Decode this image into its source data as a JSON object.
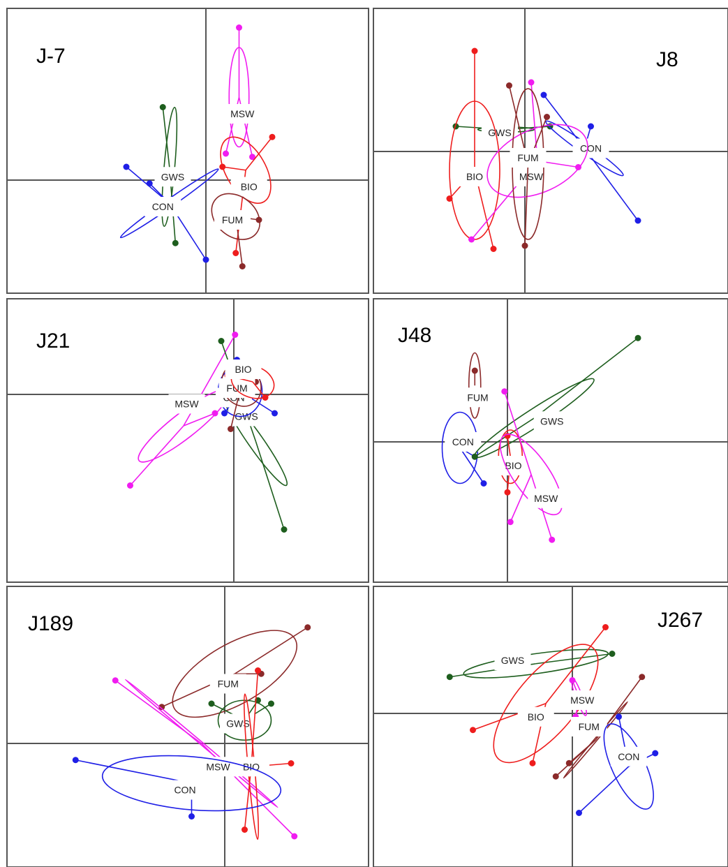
{
  "chart_data": {
    "type": "scatter",
    "description_free": true,
    "grid": false,
    "colors": {
      "CON": "#1f1fe6",
      "GWS": "#1e5e1e",
      "MSW": "#f01cf0",
      "BIO": "#ee1d1d",
      "FUM": "#8b2a2a",
      "axis": "#555555",
      "frame": "#555555"
    },
    "panels": [
      {
        "title": "J-7",
        "origin": [
          0,
          0
        ],
        "groups": [
          {
            "name": "GWS",
            "label_at": [
              -0.5,
              0.05
            ],
            "ellipse": {
              "cx": -0.55,
              "cy": 0.2,
              "rx": 0.08,
              "ry": 0.9,
              "angle": -5
            },
            "spokes": [
              [
                -0.65,
                1.1
              ],
              [
                -0.46,
                -0.95
              ]
            ]
          },
          {
            "name": "CON",
            "label_at": [
              -0.65,
              -0.4
            ],
            "ellipse": {
              "cx": -0.55,
              "cy": -0.35,
              "rx": 0.9,
              "ry": 0.06,
              "angle": 35
            },
            "spokes": [
              [
                -1.2,
                0.2
              ],
              [
                -0.85,
                -0.05
              ],
              [
                0.0,
                -1.2
              ]
            ]
          },
          {
            "name": "MSW",
            "label_at": [
              0.55,
              1.0
            ],
            "ellipse": {
              "cx": 0.5,
              "cy": 1.25,
              "rx": 0.15,
              "ry": 0.75,
              "angle": 0
            },
            "spokes": [
              [
                0.5,
                2.3
              ],
              [
                0.3,
                0.4
              ],
              [
                0.7,
                0.35
              ]
            ]
          },
          {
            "name": "BIO",
            "label_at": [
              0.65,
              -0.1
            ],
            "ellipse": {
              "cx": 0.6,
              "cy": 0.15,
              "rx": 0.3,
              "ry": 0.55,
              "angle": 30
            },
            "spokes": [
              [
                1.0,
                0.65
              ],
              [
                0.25,
                0.2
              ],
              [
                0.45,
                -1.1
              ]
            ]
          },
          {
            "name": "FUM",
            "label_at": [
              0.4,
              -0.6
            ],
            "ellipse": {
              "cx": 0.45,
              "cy": -0.55,
              "rx": 0.4,
              "ry": 0.3,
              "angle": -40
            },
            "spokes": [
              [
                0.8,
                -0.6
              ],
              [
                0.55,
                -1.3
              ]
            ]
          }
        ]
      },
      {
        "title": "J8",
        "origin": [
          0,
          0
        ],
        "groups": [
          {
            "name": "GWS",
            "label_at": [
              -0.4,
              0.3
            ],
            "ellipse": {
              "cx": -0.3,
              "cy": 0.35,
              "rx": 0.45,
              "ry": 0.04,
              "angle": 0
            },
            "spokes": [
              [
                -1.1,
                0.4
              ],
              [
                0.4,
                0.4
              ]
            ]
          },
          {
            "name": "CON",
            "label_at": [
              1.05,
              0.05
            ],
            "ellipse": {
              "cx": 0.95,
              "cy": 0.05,
              "rx": 0.75,
              "ry": 0.08,
              "angle": -35
            },
            "spokes": [
              [
                0.3,
                0.9
              ],
              [
                1.05,
                0.4
              ],
              [
                1.8,
                -1.1
              ]
            ]
          },
          {
            "name": "BIO",
            "label_at": [
              -0.8,
              -0.4
            ],
            "ellipse": {
              "cx": -0.8,
              "cy": -0.3,
              "rx": 0.4,
              "ry": 1.1,
              "angle": 0
            },
            "spokes": [
              [
                -0.8,
                1.6
              ],
              [
                -1.2,
                -0.75
              ],
              [
                -0.5,
                -1.55
              ]
            ]
          },
          {
            "name": "MSW",
            "label_at": [
              0.1,
              -0.4
            ],
            "ellipse": {
              "cx": 0.2,
              "cy": -0.15,
              "rx": 0.85,
              "ry": 0.5,
              "angle": 25
            },
            "spokes": [
              [
                0.1,
                1.1
              ],
              [
                0.85,
                -0.25
              ],
              [
                -0.85,
                -1.4
              ]
            ]
          },
          {
            "name": "FUM",
            "label_at": [
              0.05,
              -0.1
            ],
            "ellipse": {
              "cx": 0.05,
              "cy": -0.2,
              "rx": 0.25,
              "ry": 1.2,
              "angle": 0
            },
            "spokes": [
              [
                -0.25,
                1.05
              ],
              [
                0.35,
                0.55
              ],
              [
                0.0,
                -1.5
              ]
            ]
          }
        ]
      },
      {
        "title": "J21",
        "origin": [
          0,
          0
        ],
        "groups": [
          {
            "name": "MSW",
            "label_at": [
              -0.75,
              -0.15
            ],
            "ellipse": {
              "cx": -0.8,
              "cy": -0.5,
              "rx": 0.9,
              "ry": 0.2,
              "angle": 38
            },
            "spokes": [
              [
                0.02,
                0.95
              ],
              [
                -0.3,
                -0.3
              ],
              [
                -1.65,
                -1.45
              ]
            ]
          },
          {
            "name": "GWS",
            "label_at": [
              0.2,
              -0.35
            ],
            "ellipse": {
              "cx": 0.35,
              "cy": -0.75,
              "rx": 0.85,
              "ry": 0.12,
              "angle": -55
            },
            "spokes": [
              [
                -0.2,
                0.85
              ],
              [
                0.8,
                -2.15
              ]
            ]
          },
          {
            "name": "CON",
            "label_at": [
              0.0,
              -0.05
            ],
            "ellipse": {
              "cx": 0.1,
              "cy": 0.05,
              "rx": 0.35,
              "ry": 0.4,
              "angle": 0
            },
            "spokes": [
              [
                -0.15,
                -0.3
              ],
              [
                0.65,
                -0.3
              ],
              [
                0.05,
                0.55
              ]
            ]
          },
          {
            "name": "FUM",
            "label_at": [
              0.05,
              0.1
            ],
            "ellipse": {
              "cx": 0.12,
              "cy": 0.15,
              "rx": 0.3,
              "ry": 0.35,
              "angle": 30
            },
            "spokes": [
              [
                0.05,
                0.4
              ],
              [
                0.35,
                0.2
              ],
              [
                -0.05,
                -0.55
              ]
            ]
          },
          {
            "name": "BIO",
            "label_at": [
              0.15,
              0.4
            ],
            "ellipse": {
              "cx": 0.3,
              "cy": 0.2,
              "rx": 0.35,
              "ry": 0.25,
              "angle": -20
            },
            "spokes": [
              [
                0.5,
                -0.05
              ],
              [
                -0.1,
                0.3
              ]
            ]
          }
        ]
      },
      {
        "title": "J48",
        "origin": [
          0,
          0
        ],
        "groups": [
          {
            "name": "FUM",
            "label_at": [
              -0.5,
              0.75
            ],
            "ellipse": {
              "cx": -0.55,
              "cy": 0.95,
              "rx": 0.1,
              "ry": 0.55,
              "angle": 0
            },
            "spokes": [
              [
                -0.55,
                1.2
              ]
            ]
          },
          {
            "name": "CON",
            "label_at": [
              -0.75,
              0.0
            ],
            "ellipse": {
              "cx": -0.8,
              "cy": -0.1,
              "rx": 0.3,
              "ry": 0.6,
              "angle": 0
            },
            "spokes": [
              [
                -1.0,
                -0.05
              ],
              [
                -0.4,
                -0.7
              ],
              [
                -0.55,
                -0.25
              ]
            ]
          },
          {
            "name": "GWS",
            "label_at": [
              0.75,
              0.35
            ],
            "ellipse": {
              "cx": 0.45,
              "cy": 0.4,
              "rx": 1.2,
              "ry": 0.15,
              "angle": 33
            },
            "spokes": [
              [
                2.2,
                1.75
              ],
              [
                -0.55,
                -0.25
              ]
            ]
          },
          {
            "name": "BIO",
            "label_at": [
              0.1,
              -0.4
            ],
            "ellipse": {
              "cx": 0.05,
              "cy": -0.25,
              "rx": 0.2,
              "ry": 0.45,
              "angle": 0
            },
            "spokes": [
              [
                0.0,
                0.1
              ],
              [
                0.0,
                -0.85
              ]
            ]
          },
          {
            "name": "MSW",
            "label_at": [
              0.65,
              -0.95
            ],
            "ellipse": {
              "cx": 0.4,
              "cy": -0.55,
              "rx": 0.8,
              "ry": 0.3,
              "angle": -55
            },
            "spokes": [
              [
                -0.05,
                0.85
              ],
              [
                0.75,
                -1.65
              ],
              [
                0.05,
                -1.35
              ]
            ]
          }
        ]
      },
      {
        "title": "J189",
        "origin": [
          0,
          0
        ],
        "groups": [
          {
            "name": "FUM",
            "label_at": [
              0.05,
              0.9
            ],
            "ellipse": {
              "cx": 0.15,
              "cy": 1.05,
              "rx": 1.05,
              "ry": 0.45,
              "angle": 30
            },
            "spokes": [
              [
                1.25,
                1.75
              ],
              [
                -0.95,
                0.55
              ],
              [
                0.55,
                1.05
              ]
            ]
          },
          {
            "name": "GWS",
            "label_at": [
              0.2,
              0.3
            ],
            "ellipse": {
              "cx": 0.3,
              "cy": 0.35,
              "rx": 0.4,
              "ry": 0.3,
              "angle": 0
            },
            "spokes": [
              [
                -0.2,
                0.6
              ],
              [
                0.7,
                0.6
              ],
              [
                0.5,
                0.65
              ]
            ]
          },
          {
            "name": "MSW",
            "label_at": [
              -0.1,
              -0.35
            ],
            "ellipse": {
              "cx": -0.35,
              "cy": 0.0,
              "rx": 1.5,
              "ry": 0.02,
              "angle": -40
            },
            "spokes": [
              [
                -1.65,
                0.95
              ],
              [
                1.05,
                -1.4
              ]
            ]
          },
          {
            "name": "BIO",
            "label_at": [
              0.4,
              -0.35
            ],
            "ellipse": {
              "cx": 0.4,
              "cy": -0.35,
              "rx": 1.1,
              "ry": 0.05,
              "angle": -85
            },
            "spokes": [
              [
                0.5,
                1.1
              ],
              [
                0.35,
                -0.25
              ],
              [
                1.0,
                -0.3
              ],
              [
                0.3,
                -1.3
              ]
            ]
          },
          {
            "name": "CON",
            "label_at": [
              -0.6,
              -0.7
            ],
            "ellipse": {
              "cx": -0.5,
              "cy": -0.6,
              "rx": 1.35,
              "ry": 0.4,
              "angle": -5
            },
            "spokes": [
              [
                -2.25,
                -0.25
              ],
              [
                -0.5,
                -1.1
              ]
            ]
          }
        ]
      },
      {
        "title": "J267",
        "origin": [
          0,
          0
        ],
        "groups": [
          {
            "name": "GWS",
            "label_at": [
              -0.9,
              0.8
            ],
            "ellipse": {
              "cx": -0.55,
              "cy": 0.75,
              "rx": 1.1,
              "ry": 0.15,
              "angle": 8
            },
            "spokes": [
              [
                -1.85,
                0.55
              ],
              [
                0.6,
                0.9
              ]
            ]
          },
          {
            "name": "BIO",
            "label_at": [
              -0.55,
              -0.05
            ],
            "ellipse": {
              "cx": -0.4,
              "cy": 0.15,
              "rx": 1.1,
              "ry": 0.45,
              "angle": 50
            },
            "spokes": [
              [
                0.5,
                1.3
              ],
              [
                -1.5,
                -0.25
              ],
              [
                -0.6,
                -0.75
              ]
            ]
          },
          {
            "name": "MSW",
            "label_at": [
              0.15,
              0.2
            ],
            "ellipse": {
              "cx": 0.1,
              "cy": 0.25,
              "rx": 0.3,
              "ry": 0.05,
              "angle": -70
            },
            "spokes": [
              [
                0.0,
                0.5
              ],
              [
                0.05,
                -0.05
              ]
            ]
          },
          {
            "name": "FUM",
            "label_at": [
              0.25,
              -0.2
            ],
            "ellipse": {
              "cx": 0.35,
              "cy": -0.4,
              "rx": 0.75,
              "ry": 0.02,
              "angle": 50
            },
            "spokes": [
              [
                1.05,
                0.55
              ],
              [
                -0.25,
                -0.95
              ],
              [
                -0.05,
                -0.75
              ]
            ]
          },
          {
            "name": "CON",
            "label_at": [
              0.85,
              -0.65
            ],
            "ellipse": {
              "cx": 0.85,
              "cy": -0.8,
              "rx": 0.7,
              "ry": 0.25,
              "angle": -65
            },
            "spokes": [
              [
                0.7,
                -0.05
              ],
              [
                1.25,
                -0.6
              ],
              [
                0.1,
                -1.5
              ]
            ]
          }
        ]
      }
    ]
  }
}
